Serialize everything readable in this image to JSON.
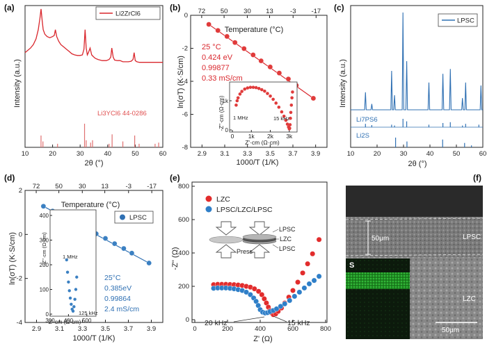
{
  "panel_labels": [
    "(a)",
    "(b)",
    "(c)",
    "(d)",
    "(e)",
    "(f)"
  ],
  "chart_data": [
    {
      "panel": "(a)",
      "type": "line",
      "xlabel": "2θ (°)",
      "ylabel": "Intensity (a.u.)",
      "xlim": [
        10,
        60
      ],
      "xticks": [
        "10",
        "20",
        "30",
        "40",
        "50",
        "60"
      ],
      "legend": "Li2ZrCl6",
      "reference_label": "Li3YCl6 44-0286",
      "color": "#d9262c",
      "pattern_x": [
        10,
        12,
        13,
        14,
        14.8,
        15.4,
        15.8,
        16.2,
        16.6,
        17.2,
        18,
        19,
        20,
        20.6,
        21,
        21.5,
        22.2,
        23,
        24,
        25,
        26,
        27,
        28,
        29,
        30,
        30.8,
        31.4,
        31.8,
        32.2,
        32.6,
        33,
        33.6,
        34.2,
        34.8,
        35.5,
        36.5,
        38,
        39.5,
        40.5,
        41.1,
        41.5,
        42,
        42.5,
        43.5,
        44.5,
        45.5,
        46.5,
        47.5,
        48.5,
        49.2,
        49.6,
        50,
        50.6,
        51.5,
        53,
        55,
        57,
        59,
        60
      ],
      "pattern_y": [
        0.62,
        0.66,
        0.69,
        0.74,
        0.82,
        0.92,
        1.0,
        0.9,
        0.82,
        0.78,
        0.76,
        0.75,
        0.76,
        0.77,
        0.82,
        0.76,
        0.72,
        0.69,
        0.67,
        0.65,
        0.63,
        0.61,
        0.6,
        0.595,
        0.595,
        0.6,
        0.65,
        0.82,
        0.66,
        0.6,
        0.62,
        0.66,
        0.6,
        0.585,
        0.57,
        0.56,
        0.55,
        0.55,
        0.56,
        0.58,
        0.66,
        0.58,
        0.555,
        0.55,
        0.55,
        0.54,
        0.54,
        0.54,
        0.545,
        0.56,
        0.62,
        0.55,
        0.54,
        0.535,
        0.535,
        0.535,
        0.535,
        0.535,
        0.535
      ],
      "reference_peaks": [
        15.8,
        16.5,
        21.8,
        31.6,
        32.2,
        33.8,
        34.5,
        40.5,
        41.6,
        45.5,
        49.8,
        51.4,
        57.2,
        58.5
      ],
      "reference_heights": [
        0.5,
        0.25,
        0.15,
        1.0,
        0.3,
        0.2,
        0.3,
        0.15,
        0.55,
        0.25,
        0.5,
        0.15,
        0.15,
        0.2
      ]
    },
    {
      "panel": "(b)",
      "type": "scatter",
      "xlabel": "1000/T (1/K)",
      "ylabel": "ln(σT) (K·S/cm)",
      "top_axis_label": "Temperature (°C)",
      "top_ticks": [
        "72",
        "50",
        "30",
        "13",
        "-3",
        "-17"
      ],
      "top_tick_values_c": [
        72,
        50,
        30,
        13,
        -3,
        -17
      ],
      "xlim": [
        2.8,
        4.0
      ],
      "ylim": [
        -8,
        0
      ],
      "xticks": [
        "2.9",
        "3.1",
        "3.3",
        "3.5",
        "3.7",
        "3.9"
      ],
      "yticks": [
        "-8",
        "-6",
        "-4",
        "-2",
        "0"
      ],
      "x": [
        2.96,
        3.04,
        3.12,
        3.19,
        3.27,
        3.35,
        3.42,
        3.5,
        3.58,
        3.66,
        3.73,
        3.88
      ],
      "y": [
        -0.55,
        -0.92,
        -1.28,
        -1.65,
        -2.02,
        -2.4,
        -2.76,
        -3.13,
        -3.5,
        -3.86,
        -4.25,
        -5.03
      ],
      "fit": {
        "x": [
          2.96,
          3.88
        ],
        "y": [
          -0.55,
          -5.03
        ]
      },
      "color": "#d9262c",
      "annotations": [
        "25 °C",
        "0.424 eV",
        "0.99877",
        "0.33 mS/cm"
      ],
      "inset": {
        "xlabel": "Z'·cm (Ω·cm)",
        "ylabel": "-Z''·cm (Ω·cm)",
        "xticks": [
          "0",
          "1k",
          "2k",
          "3k"
        ],
        "yticks": [
          "0",
          "1k"
        ],
        "xlim": [
          0,
          3300
        ],
        "ylim": [
          0,
          1500
        ],
        "annotations": [
          "1 MHz",
          "15 kHz"
        ],
        "x": [
          200,
          250,
          300,
          400,
          500,
          650,
          800,
          950,
          1100,
          1250,
          1400,
          1550,
          1700,
          1850,
          2000,
          2150,
          2300,
          2450,
          2600,
          2720,
          2820,
          2900,
          2960,
          3000,
          3020,
          3040,
          3060,
          3080,
          3110,
          3140,
          3170
        ],
        "y": [
          850,
          1000,
          1100,
          1230,
          1320,
          1400,
          1440,
          1460,
          1460,
          1450,
          1420,
          1380,
          1330,
          1250,
          1160,
          1050,
          920,
          780,
          620,
          470,
          330,
          200,
          100,
          40,
          60,
          180,
          400,
          600,
          850,
          1100,
          1300
        ]
      }
    },
    {
      "panel": "(c)",
      "type": "line",
      "xlabel": "2θ (°)",
      "ylabel": "Intensity (a.u.)",
      "xlim": [
        10,
        60
      ],
      "xticks": [
        "10",
        "20",
        "30",
        "40",
        "50",
        "60"
      ],
      "legend": "LPSC",
      "color": "#2f70b3",
      "ref_color": "#2f70b3",
      "reference_labels": [
        "Li7PS6",
        "Li2S"
      ],
      "peaks_x": [
        15.6,
        18,
        25.5,
        26.6,
        29.8,
        31.2,
        39.6,
        44.9,
        47.7,
        52.3,
        53.5,
        59.3
      ],
      "peaks_y": [
        0.18,
        0.06,
        0.4,
        0.15,
        1.0,
        0.5,
        0.28,
        0.37,
        0.42,
        0.12,
        0.28,
        0.25
      ],
      "ref1_peaks": [
        15.6,
        18,
        25.5,
        26.6,
        29.8,
        31.2,
        39.6,
        44.9,
        47.7,
        52.3,
        53.5,
        58.5
      ],
      "ref1_heights": [
        0.4,
        0.25,
        0.3,
        0.2,
        1.0,
        0.7,
        0.3,
        0.5,
        0.6,
        0.2,
        0.4,
        0.3
      ],
      "ref2_peaks": [
        27,
        31.3,
        44.8,
        53.1,
        55.7
      ],
      "ref2_heights": [
        1.0,
        0.6,
        0.8,
        0.45,
        0.2
      ]
    },
    {
      "panel": "(d)",
      "type": "scatter",
      "xlabel": "1000/T (1/K)",
      "ylabel": "ln(σT) (K·S/cm)",
      "top_axis_label": "Temperature (°C)",
      "top_ticks": [
        "72",
        "50",
        "30",
        "13",
        "-3",
        "-17"
      ],
      "top_tick_values_c": [
        72,
        50,
        30,
        13,
        -3,
        -17
      ],
      "legend": "LPSC",
      "xlim": [
        2.8,
        4.0
      ],
      "ylim": [
        -4,
        2
      ],
      "xticks": [
        "2.9",
        "3.1",
        "3.3",
        "3.5",
        "3.7",
        "3.9"
      ],
      "yticks": [
        "-4",
        "-2",
        "0",
        "2"
      ],
      "x": [
        2.96,
        3.04,
        3.12,
        3.19,
        3.27,
        3.35,
        3.42,
        3.5,
        3.58,
        3.66,
        3.73,
        3.88
      ],
      "y": [
        1.28,
        1.06,
        0.85,
        0.65,
        0.43,
        0.23,
        0.03,
        -0.18,
        -0.42,
        -0.64,
        -0.85,
        -1.3
      ],
      "fit": {
        "x": [
          2.96,
          3.88
        ],
        "y": [
          1.28,
          -1.3
        ]
      },
      "color": "#2f70b3",
      "annotations": [
        "25°C",
        "0.385eV",
        "0.99864",
        "2.4 mS/cm"
      ],
      "inset": {
        "xlabel": "Z'·cm (Ω·cm)",
        "ylabel": "-Z''·cm (Ω·cm)",
        "xticks": [
          "300",
          "400",
          "500"
        ],
        "yticks": [
          "0",
          "100",
          "200",
          "300",
          "400"
        ],
        "xlim": [
          300,
          550
        ],
        "ylim": [
          0,
          400
        ],
        "annotations": [
          "1 MHz",
          "125 kHz"
        ],
        "x": [
          390,
          395,
          400,
          405,
          410,
          415,
          420,
          425,
          430,
          435,
          440,
          445
        ],
        "y": [
          220,
          170,
          130,
          95,
          65,
          40,
          20,
          12,
          30,
          60,
          100,
          150
        ]
      }
    },
    {
      "panel": "(e)",
      "type": "scatter",
      "xlabel": "Z' (Ω)",
      "ylabel": "-Z'' (Ω)",
      "xlim": [
        0,
        800
      ],
      "ylim": [
        0,
        800
      ],
      "xticks": [
        "0",
        "200",
        "400",
        "600",
        "800"
      ],
      "yticks": [
        "0",
        "200",
        "400",
        "600",
        "800"
      ],
      "legend": [
        "LZC",
        "LPSC/LZC/LPSC"
      ],
      "annotations": [
        "20 kHz",
        "15 kHz"
      ],
      "schematic_labels": [
        "LPSC",
        "LZC",
        "LPSC",
        "Press"
      ],
      "series": [
        {
          "name": "LZC",
          "color": "#e22c2c",
          "x": [
            115,
            140,
            165,
            190,
            215,
            240,
            265,
            290,
            315,
            340,
            365,
            390,
            410,
            425,
            438,
            450,
            460,
            470,
            480,
            495,
            510,
            530,
            550,
            575,
            600,
            630,
            660,
            690,
            720,
            760
          ],
          "y": [
            210,
            212,
            212,
            212,
            211,
            210,
            208,
            205,
            200,
            195,
            185,
            170,
            150,
            125,
            100,
            75,
            55,
            40,
            30,
            35,
            50,
            70,
            100,
            135,
            175,
            225,
            280,
            335,
            395,
            480
          ]
        },
        {
          "name": "LPSC/LZC/LPSC",
          "color": "#2f7fc8",
          "x": [
            115,
            140,
            165,
            190,
            215,
            240,
            265,
            290,
            315,
            340,
            360,
            375,
            388,
            400,
            415,
            430,
            445,
            460,
            480,
            500,
            525,
            550,
            580,
            610,
            640,
            670,
            700,
            730,
            760
          ],
          "y": [
            188,
            190,
            190,
            190,
            188,
            185,
            180,
            175,
            165,
            150,
            130,
            110,
            85,
            60,
            45,
            40,
            42,
            48,
            55,
            65,
            80,
            95,
            115,
            140,
            165,
            190,
            215,
            235,
            260
          ]
        }
      ]
    },
    {
      "panel": "(f)",
      "type": "image",
      "labels": [
        "50μm",
        "LPSC",
        "S",
        "LZC",
        "50μm"
      ]
    }
  ]
}
